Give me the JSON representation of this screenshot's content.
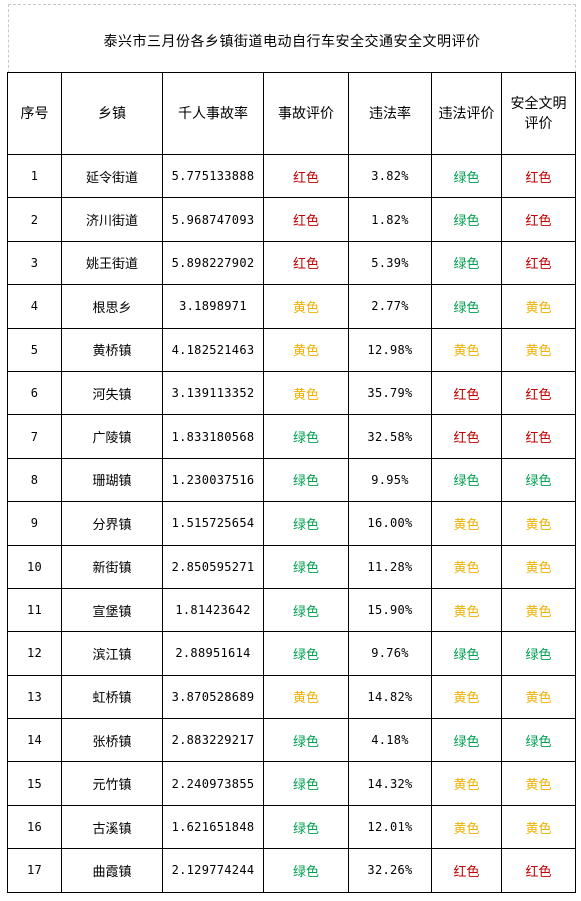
{
  "title": "泰兴市三月份各乡镇街道电动自行车安全交通安全文明评价",
  "colors": {
    "红色": "#c00000",
    "绿色": "#00a050",
    "黄色": "#f0b000"
  },
  "headers": [
    "序号",
    "乡镇",
    "千人事故率",
    "事故评价",
    "违法率",
    "违法评价",
    "安全文明\n评价"
  ],
  "rows": [
    [
      "1",
      "延令街道",
      "5.775133888",
      "红色",
      "3.82%",
      "绿色",
      "红色"
    ],
    [
      "2",
      "济川街道",
      "5.968747093",
      "红色",
      "1.82%",
      "绿色",
      "红色"
    ],
    [
      "3",
      "姚王街道",
      "5.898227902",
      "红色",
      "5.39%",
      "绿色",
      "红色"
    ],
    [
      "4",
      "根思乡",
      "3.1898971",
      "黄色",
      "2.77%",
      "绿色",
      "黄色"
    ],
    [
      "5",
      "黄桥镇",
      "4.182521463",
      "黄色",
      "12.98%",
      "黄色",
      "黄色"
    ],
    [
      "6",
      "河失镇",
      "3.139113352",
      "黄色",
      "35.79%",
      "红色",
      "红色"
    ],
    [
      "7",
      "广陵镇",
      "1.833180568",
      "绿色",
      "32.58%",
      "红色",
      "红色"
    ],
    [
      "8",
      "珊瑚镇",
      "1.230037516",
      "绿色",
      "9.95%",
      "绿色",
      "绿色"
    ],
    [
      "9",
      "分界镇",
      "1.515725654",
      "绿色",
      "16.00%",
      "黄色",
      "黄色"
    ],
    [
      "10",
      "新街镇",
      "2.850595271",
      "绿色",
      "11.28%",
      "黄色",
      "黄色"
    ],
    [
      "11",
      "宣堡镇",
      "1.81423642",
      "绿色",
      "15.90%",
      "黄色",
      "黄色"
    ],
    [
      "12",
      "滨江镇",
      "2.88951614",
      "绿色",
      "9.76%",
      "绿色",
      "绿色"
    ],
    [
      "13",
      "虹桥镇",
      "3.870528689",
      "黄色",
      "14.82%",
      "黄色",
      "黄色"
    ],
    [
      "14",
      "张桥镇",
      "2.883229217",
      "绿色",
      "4.18%",
      "绿色",
      "绿色"
    ],
    [
      "15",
      "元竹镇",
      "2.240973855",
      "绿色",
      "14.32%",
      "黄色",
      "黄色"
    ],
    [
      "16",
      "古溪镇",
      "1.621651848",
      "绿色",
      "12.01%",
      "黄色",
      "黄色"
    ],
    [
      "17",
      "曲霞镇",
      "2.129774244",
      "绿色",
      "32.26%",
      "红色",
      "红色"
    ]
  ]
}
